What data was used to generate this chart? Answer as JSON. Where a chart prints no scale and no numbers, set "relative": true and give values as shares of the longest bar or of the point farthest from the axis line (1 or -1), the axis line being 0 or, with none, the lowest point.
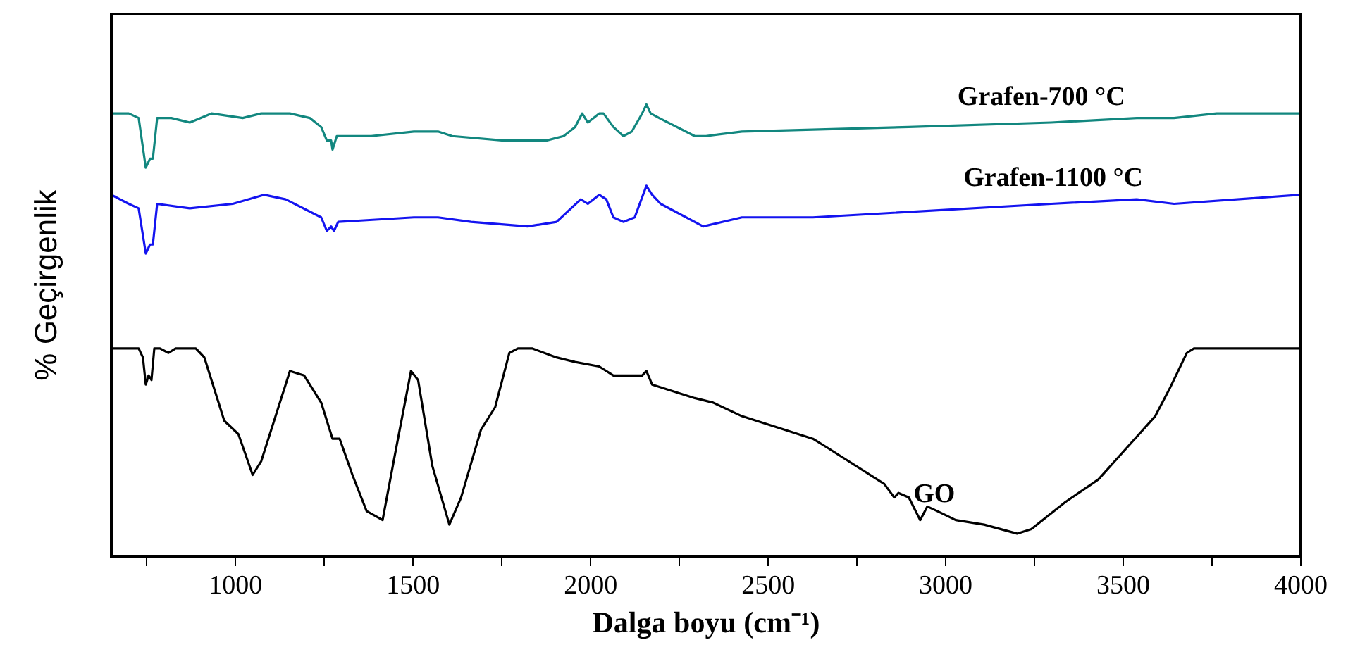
{
  "chart_data": {
    "type": "line",
    "relative": true,
    "xlabel": "Dalga boyu (cm⁻¹)",
    "ylabel": "% Geçirgenlik",
    "xlim": [
      650,
      4000
    ],
    "xticks": [
      {
        "value": 750,
        "label": null
      },
      1000,
      {
        "value": 1250,
        "label": null
      },
      1500,
      {
        "value": 1750,
        "label": null
      },
      2000,
      {
        "value": 2250,
        "label": null
      },
      2500,
      {
        "value": 2750,
        "label": null
      },
      3000,
      {
        "value": 3250,
        "label": null
      },
      3500,
      {
        "value": 3750,
        "label": null
      },
      4000
    ],
    "marker": "none",
    "line_style": "solid",
    "legend": false,
    "series": [
      {
        "name": "Grafen-700 °C",
        "color": "#12877f",
        "x": [
          650,
          699,
          727,
          747,
          759,
          767,
          779,
          819,
          871,
          932,
          1020,
          1072,
          1153,
          1209,
          1241,
          1257,
          1269,
          1273,
          1285,
          1382,
          1502,
          1570,
          1610,
          1755,
          1875,
          1924,
          1956,
          1976,
          1992,
          2024,
          2036,
          2064,
          2092,
          2116,
          2145,
          2157,
          2169,
          2193,
          2293,
          2325,
          2426,
          2896,
          3297,
          3538,
          3643,
          3763,
          4000
        ],
        "values": [
          0.98,
          0.98,
          0.97,
          0.86,
          0.88,
          0.88,
          0.97,
          0.97,
          0.96,
          0.98,
          0.97,
          0.98,
          0.98,
          0.97,
          0.95,
          0.92,
          0.92,
          0.9,
          0.93,
          0.93,
          0.94,
          0.94,
          0.93,
          0.92,
          0.92,
          0.93,
          0.95,
          0.98,
          0.96,
          0.98,
          0.98,
          0.95,
          0.93,
          0.94,
          0.98,
          1.0,
          0.98,
          0.97,
          0.93,
          0.93,
          0.94,
          0.95,
          0.96,
          0.97,
          0.97,
          0.98,
          0.98
        ]
      },
      {
        "name": "Grafen-1100 °C",
        "color": "#1414f0",
        "x": [
          650,
          699,
          727,
          747,
          759,
          767,
          779,
          871,
          992,
          1080,
          1141,
          1241,
          1257,
          1269,
          1277,
          1289,
          1502,
          1570,
          1663,
          1823,
          1904,
          1972,
          1992,
          2024,
          2044,
          2064,
          2092,
          2124,
          2157,
          2173,
          2197,
          2317,
          2426,
          2626,
          3297,
          3538,
          3643,
          4000
        ],
        "values": [
          0.8,
          0.78,
          0.77,
          0.67,
          0.69,
          0.69,
          0.78,
          0.77,
          0.78,
          0.8,
          0.79,
          0.75,
          0.72,
          0.73,
          0.72,
          0.74,
          0.75,
          0.75,
          0.74,
          0.73,
          0.74,
          0.79,
          0.78,
          0.8,
          0.79,
          0.75,
          0.74,
          0.75,
          0.82,
          0.8,
          0.78,
          0.73,
          0.75,
          0.75,
          0.78,
          0.79,
          0.78,
          0.8
        ]
      },
      {
        "name": "GO",
        "color": "#000000",
        "x": [
          650,
          727,
          739,
          747,
          755,
          763,
          771,
          787,
          811,
          831,
          888,
          912,
          968,
          1008,
          1048,
          1072,
          1153,
          1193,
          1241,
          1273,
          1293,
          1329,
          1369,
          1414,
          1450,
          1494,
          1514,
          1554,
          1602,
          1635,
          1691,
          1731,
          1771,
          1795,
          1835,
          1904,
          1956,
          2024,
          2064,
          2145,
          2157,
          2173,
          2293,
          2345,
          2426,
          2626,
          2667,
          2827,
          2855,
          2867,
          2896,
          2928,
          2948,
          2976,
          3028,
          3108,
          3201,
          3241,
          3337,
          3430,
          3510,
          3590,
          3630,
          3679,
          3699,
          4000
        ],
        "values": [
          0.46,
          0.46,
          0.44,
          0.38,
          0.4,
          0.39,
          0.46,
          0.46,
          0.45,
          0.46,
          0.46,
          0.44,
          0.3,
          0.27,
          0.18,
          0.21,
          0.41,
          0.4,
          0.34,
          0.26,
          0.26,
          0.18,
          0.1,
          0.08,
          0.23,
          0.41,
          0.39,
          0.2,
          0.07,
          0.13,
          0.28,
          0.33,
          0.45,
          0.46,
          0.46,
          0.44,
          0.43,
          0.42,
          0.4,
          0.4,
          0.41,
          0.38,
          0.35,
          0.34,
          0.31,
          0.26,
          0.24,
          0.16,
          0.13,
          0.14,
          0.13,
          0.08,
          0.11,
          0.1,
          0.08,
          0.07,
          0.05,
          0.06,
          0.12,
          0.17,
          0.24,
          0.31,
          0.37,
          0.45,
          0.46,
          0.46
        ]
      }
    ]
  }
}
